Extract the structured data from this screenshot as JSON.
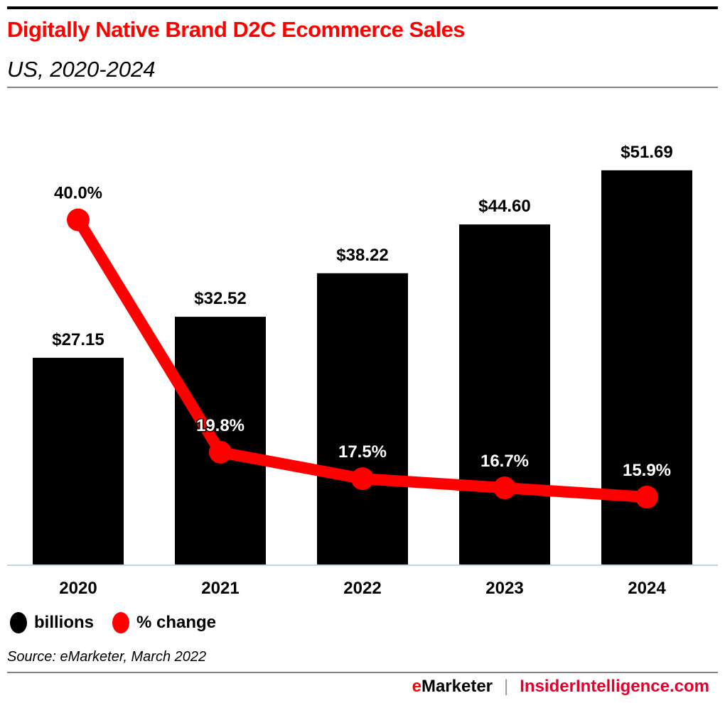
{
  "header": {
    "title": "Digitally Native Brand D2C Ecommerce Sales",
    "subtitle": "US, 2020-2024"
  },
  "chart_data": {
    "type": "bar",
    "title": "Digitally Native Brand D2C Ecommerce Sales",
    "subtitle": "US, 2020-2024",
    "categories": [
      "2020",
      "2021",
      "2022",
      "2023",
      "2024"
    ],
    "series": [
      {
        "name": "billions",
        "type": "bar",
        "color": "#000000",
        "values": [
          27.15,
          32.52,
          38.22,
          44.6,
          51.69
        ],
        "labels": [
          "$27.15",
          "$32.52",
          "$38.22",
          "$44.60",
          "$51.69"
        ]
      },
      {
        "name": "% change",
        "type": "line",
        "color": "#ff0000",
        "values": [
          40.0,
          19.8,
          17.5,
          16.7,
          15.9
        ],
        "labels": [
          "40.0%",
          "19.8%",
          "17.5%",
          "16.7%",
          "15.9%"
        ]
      }
    ],
    "xlabel": "",
    "ylabel": "",
    "grid": false,
    "legend": "bottom-left"
  },
  "legend": {
    "items": [
      {
        "label": "billions",
        "color": "#000000"
      },
      {
        "label": "% change",
        "color": "#ff0000"
      }
    ]
  },
  "footer": {
    "source": "Source: eMarketer, March 2022",
    "brand_e": "e",
    "brand_rest": "Marketer",
    "separator": "|",
    "brand_ii": "InsiderIntelligence.com"
  }
}
